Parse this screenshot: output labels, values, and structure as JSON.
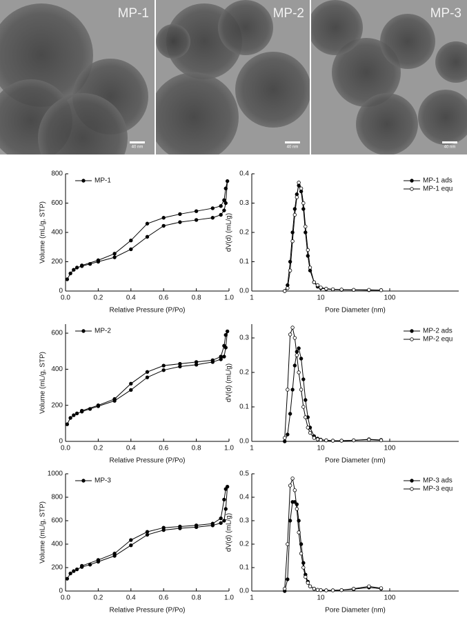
{
  "images": [
    {
      "label": "MP-1",
      "scale_bar": "40 nm"
    },
    {
      "label": "MP-2",
      "scale_bar": "40 nm"
    },
    {
      "label": "MP-3",
      "scale_bar": "40 nm"
    }
  ],
  "chart_data": [
    {
      "type": "line",
      "xlabel": "Relative Pressure (P/Po)",
      "ylabel": "Volume (mL/g, STP)",
      "legend": "upper left",
      "xlim": [
        0,
        1
      ],
      "xticks": [
        {
          "value": 0,
          "label": "0.0"
        },
        0.2,
        0.4,
        0.6,
        0.8,
        {
          "value": 1,
          "label": "1.0"
        }
      ],
      "ylim": [
        0,
        800
      ],
      "yticks": [
        0,
        200,
        400,
        600,
        800
      ],
      "x": [
        0.01,
        0.03,
        0.05,
        0.07,
        0.1,
        0.15,
        0.2,
        0.3,
        0.4,
        0.5,
        0.6,
        0.7,
        0.8,
        0.9,
        0.95,
        0.97,
        0.98,
        0.99,
        0.98,
        0.97,
        0.95,
        0.9,
        0.8,
        0.7,
        0.6,
        0.5,
        0.4,
        0.3,
        0.2,
        0.1
      ],
      "series": [
        {
          "name": "MP-1",
          "color": "#000000",
          "marker": "filled",
          "values": [
            80,
            120,
            145,
            160,
            170,
            185,
            200,
            230,
            285,
            370,
            445,
            470,
            485,
            500,
            520,
            550,
            600,
            750,
            700,
            620,
            580,
            565,
            545,
            525,
            500,
            460,
            345,
            255,
            210,
            175
          ]
        }
      ]
    },
    {
      "type": "line",
      "xlabel": "Pore Diameter (nm)",
      "ylabel": "dV(d) (mL/g)",
      "legend": "upper right",
      "xscale": "log",
      "xlim": [
        1,
        1000
      ],
      "xticks": [
        1,
        10,
        100
      ],
      "ylim": [
        0,
        0.4
      ],
      "yticks": [
        {
          "value": 0,
          "label": "0.0"
        },
        0.1,
        0.2,
        0.3,
        0.4
      ],
      "x": [
        3.0,
        3.3,
        3.6,
        3.9,
        4.2,
        4.5,
        4.8,
        5.2,
        5.6,
        6.0,
        6.5,
        7.0,
        8,
        9,
        10,
        12,
        15,
        20,
        30,
        50,
        75
      ],
      "series": [
        {
          "name": "MP-1 ads",
          "color": "#000000",
          "marker": "filled",
          "values": [
            0,
            0.02,
            0.1,
            0.2,
            0.28,
            0.33,
            0.36,
            0.34,
            0.28,
            0.2,
            0.12,
            0.07,
            0.03,
            0.015,
            0.01,
            0.007,
            0.005,
            0.004,
            0.004,
            0.003,
            0.003
          ]
        },
        {
          "name": "MP-1 equ",
          "color": "#000000",
          "marker": "open",
          "values": [
            0,
            0.01,
            0.07,
            0.17,
            0.26,
            0.32,
            0.37,
            0.35,
            0.3,
            0.22,
            0.14,
            0.08,
            0.03,
            0.02,
            0.012,
            0.008,
            0.006,
            0.005,
            0.004,
            0.004,
            0.003
          ]
        }
      ]
    },
    {
      "type": "line",
      "xlabel": "Relative Pressure (P/Po)",
      "ylabel": "Volume (mL/g, STP)",
      "legend": "upper left",
      "xlim": [
        0,
        1
      ],
      "xticks": [
        {
          "value": 0,
          "label": "0.0"
        },
        0.2,
        0.4,
        0.6,
        0.8,
        {
          "value": 1,
          "label": "1.0"
        }
      ],
      "ylim": [
        0,
        650
      ],
      "yticks": [
        0,
        200,
        400,
        600
      ],
      "x": [
        0.01,
        0.03,
        0.05,
        0.07,
        0.1,
        0.15,
        0.2,
        0.3,
        0.4,
        0.5,
        0.6,
        0.7,
        0.8,
        0.9,
        0.95,
        0.97,
        0.98,
        0.99,
        0.98,
        0.97,
        0.95,
        0.9,
        0.8,
        0.7,
        0.6,
        0.5,
        0.4,
        0.3,
        0.2,
        0.1
      ],
      "series": [
        {
          "name": "MP-2",
          "color": "#000000",
          "marker": "filled",
          "values": [
            95,
            130,
            145,
            155,
            165,
            180,
            195,
            225,
            285,
            355,
            395,
            415,
            425,
            440,
            455,
            470,
            520,
            610,
            590,
            530,
            470,
            450,
            440,
            430,
            420,
            385,
            320,
            235,
            200,
            170
          ]
        }
      ]
    },
    {
      "type": "line",
      "xlabel": "Pore Diameter (nm)",
      "ylabel": "dV(d) (mL/g)",
      "legend": "upper right",
      "xscale": "log",
      "xlim": [
        1,
        1000
      ],
      "xticks": [
        1,
        10,
        100
      ],
      "ylim": [
        0,
        0.34
      ],
      "yticks": [
        {
          "value": 0,
          "label": "0.0"
        },
        0.1,
        0.2,
        0.3
      ],
      "x": [
        3.0,
        3.3,
        3.6,
        3.9,
        4.2,
        4.5,
        4.8,
        5.2,
        5.6,
        6.0,
        6.5,
        7.0,
        8,
        9,
        10,
        12,
        15,
        20,
        30,
        50,
        75
      ],
      "series": [
        {
          "name": "MP-2 ads",
          "color": "#000000",
          "marker": "filled",
          "values": [
            0,
            0.02,
            0.08,
            0.15,
            0.22,
            0.26,
            0.27,
            0.24,
            0.18,
            0.12,
            0.07,
            0.04,
            0.015,
            0.008,
            0.005,
            0.003,
            0.002,
            0.002,
            0.003,
            0.006,
            0.004
          ]
        },
        {
          "name": "MP-2 equ",
          "color": "#000000",
          "marker": "open",
          "values": [
            0.01,
            0.15,
            0.31,
            0.33,
            0.3,
            0.25,
            0.2,
            0.15,
            0.1,
            0.07,
            0.04,
            0.025,
            0.01,
            0.006,
            0.004,
            0.003,
            0.002,
            0.002,
            0.003,
            0.005,
            0.003
          ]
        }
      ]
    },
    {
      "type": "line",
      "xlabel": "Relative Pressure (P/Po)",
      "ylabel": "Volume (mL/g, STP)",
      "legend": "upper left",
      "xlim": [
        0,
        1
      ],
      "xticks": [
        {
          "value": 0,
          "label": "0.0"
        },
        0.2,
        0.4,
        0.6,
        0.8,
        {
          "value": 1,
          "label": "1.0"
        }
      ],
      "ylim": [
        0,
        1000
      ],
      "yticks": [
        0,
        200,
        400,
        600,
        800,
        1000
      ],
      "x": [
        0.01,
        0.03,
        0.05,
        0.07,
        0.1,
        0.15,
        0.2,
        0.3,
        0.4,
        0.5,
        0.6,
        0.7,
        0.8,
        0.9,
        0.95,
        0.97,
        0.98,
        0.99,
        0.98,
        0.97,
        0.95,
        0.9,
        0.8,
        0.7,
        0.6,
        0.5,
        0.4,
        0.3,
        0.2,
        0.1
      ],
      "series": [
        {
          "name": "MP-3",
          "color": "#000000",
          "marker": "filled",
          "values": [
            105,
            150,
            170,
            185,
            205,
            225,
            250,
            300,
            390,
            480,
            520,
            535,
            545,
            560,
            580,
            600,
            700,
            890,
            870,
            780,
            620,
            575,
            560,
            550,
            540,
            505,
            435,
            320,
            265,
            215
          ]
        }
      ]
    },
    {
      "type": "line",
      "xlabel": "Pore Diameter (nm)",
      "ylabel": "dV(d) (mL/g)",
      "legend": "upper right",
      "xscale": "log",
      "xlim": [
        1,
        1000
      ],
      "xticks": [
        1,
        10,
        100
      ],
      "ylim": [
        0,
        0.5
      ],
      "yticks": [
        {
          "value": 0,
          "label": "0.0"
        },
        0.1,
        0.2,
        0.3,
        0.4,
        0.5
      ],
      "x": [
        3.0,
        3.3,
        3.6,
        3.9,
        4.2,
        4.5,
        4.8,
        5.2,
        5.6,
        6.0,
        6.5,
        7.0,
        8,
        9,
        10,
        12,
        15,
        20,
        30,
        50,
        75
      ],
      "series": [
        {
          "name": "MP-3 ads",
          "color": "#000000",
          "marker": "filled",
          "values": [
            0,
            0.05,
            0.3,
            0.38,
            0.38,
            0.37,
            0.3,
            0.2,
            0.12,
            0.07,
            0.04,
            0.02,
            0.01,
            0.005,
            0.004,
            0.003,
            0.003,
            0.004,
            0.008,
            0.015,
            0.01
          ]
        },
        {
          "name": "MP-3 equ",
          "color": "#000000",
          "marker": "open",
          "values": [
            0.01,
            0.2,
            0.45,
            0.48,
            0.43,
            0.35,
            0.25,
            0.16,
            0.1,
            0.06,
            0.035,
            0.02,
            0.01,
            0.005,
            0.004,
            0.003,
            0.003,
            0.004,
            0.01,
            0.02,
            0.012
          ]
        }
      ]
    }
  ]
}
